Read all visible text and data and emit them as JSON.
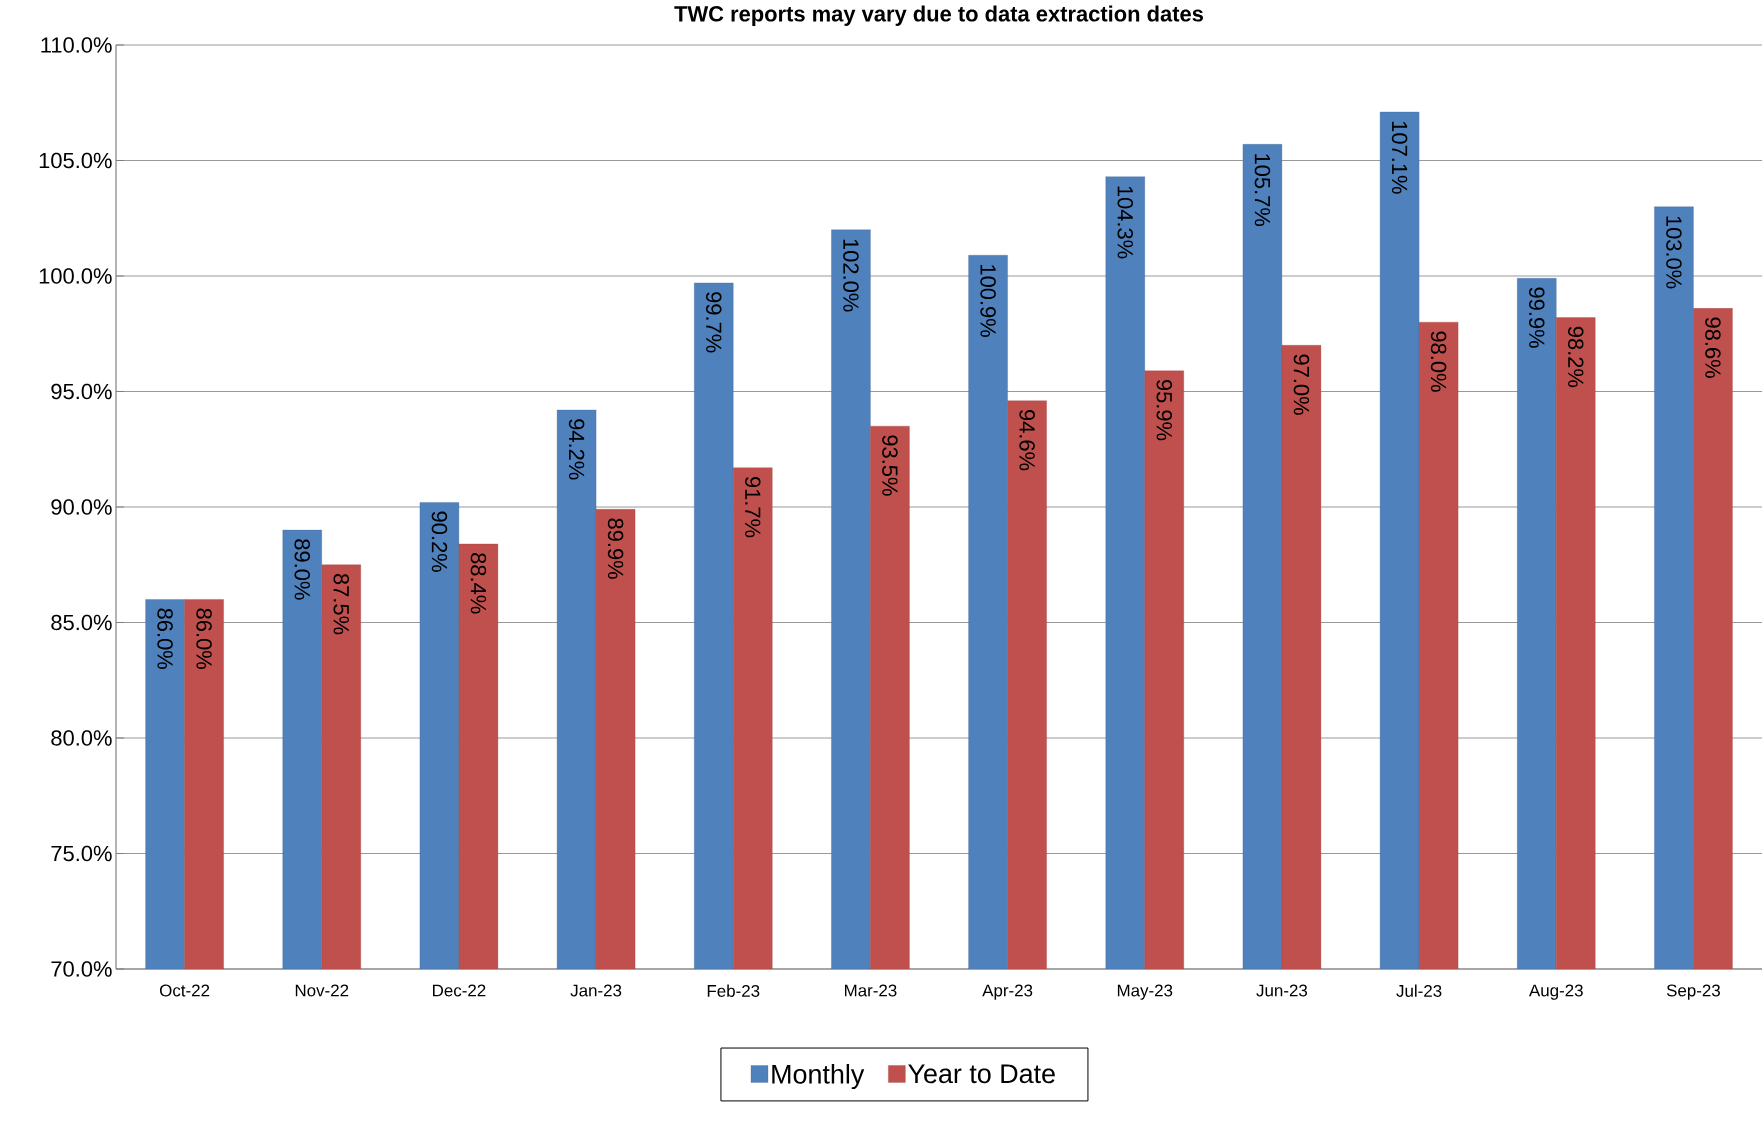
{
  "chart_data": {
    "type": "bar",
    "title": "TWC reports may vary due to data extraction dates",
    "categories": [
      "Oct-22",
      "Nov-22",
      "Dec-22",
      "Jan-23",
      "Feb-23",
      "Mar-23",
      "Apr-23",
      "May-23",
      "Jun-23",
      "Jul-23",
      "Aug-23",
      "Sep-23"
    ],
    "series": [
      {
        "name": "Monthly",
        "color": "#4f81bd",
        "values": [
          86.0,
          89.0,
          90.2,
          94.2,
          99.7,
          102.0,
          100.9,
          104.3,
          105.7,
          107.1,
          99.9,
          103.0
        ],
        "value_labels": [
          "86.0%",
          "89.0%",
          "90.2%",
          "94.2%",
          "99.7%",
          "102.0%",
          "100.9%",
          "104.3%",
          "105.7%",
          "107.1%",
          "99.9%",
          "103.0%"
        ]
      },
      {
        "name": "Year to Date",
        "color": "#c0504d",
        "values": [
          86.0,
          87.5,
          88.4,
          89.9,
          91.7,
          93.5,
          94.6,
          95.9,
          97.0,
          98.0,
          98.2,
          98.6
        ],
        "value_labels": [
          "86.0%",
          "87.5%",
          "88.4%",
          "89.9%",
          "91.7%",
          "93.5%",
          "94.6%",
          "95.9%",
          "97.0%",
          "98.0%",
          "98.2%",
          "98.6%"
        ]
      }
    ],
    "ylim": [
      70,
      110
    ],
    "yticks": [
      {
        "value": 70,
        "label": "70.0%"
      },
      {
        "value": 75,
        "label": "75.0%"
      },
      {
        "value": 80,
        "label": "80.0%"
      },
      {
        "value": 85,
        "label": "85.0%"
      },
      {
        "value": 90,
        "label": "90.0%"
      },
      {
        "value": 95,
        "label": "95.0%"
      },
      {
        "value": 100,
        "label": "100.0%"
      },
      {
        "value": 105,
        "label": "105.0%"
      },
      {
        "value": 110,
        "label": "110.0%"
      }
    ],
    "grid": "y",
    "legend": "bottom"
  }
}
